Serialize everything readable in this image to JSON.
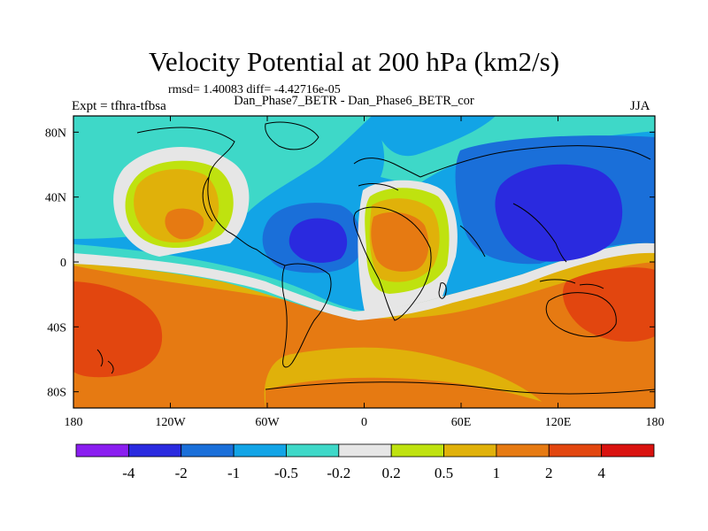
{
  "chart_data": {
    "type": "heatmap",
    "title": "Velocity Potential at 200 hPa (km2/s)",
    "stats": "rmsd= 1.40083 diff= -4.42716e-05",
    "subtitle": "Dan_Phase7_BETR - Dan_Phase6_BETR_cor",
    "left_label": "Expt = tfhra-tfbsa",
    "right_label": "JJA",
    "xlim": [
      -180,
      180
    ],
    "ylim": [
      -90,
      90
    ],
    "x_ticks": [
      {
        "value": -180,
        "label": "180"
      },
      {
        "value": -120,
        "label": "120W"
      },
      {
        "value": -60,
        "label": "60W"
      },
      {
        "value": 0,
        "label": "0"
      },
      {
        "value": 60,
        "label": "60E"
      },
      {
        "value": 120,
        "label": "120E"
      },
      {
        "value": 180,
        "label": "180"
      }
    ],
    "y_ticks": [
      {
        "value": 80,
        "label": "80N"
      },
      {
        "value": 40,
        "label": "40N"
      },
      {
        "value": 0,
        "label": "0"
      },
      {
        "value": -40,
        "label": "40S"
      },
      {
        "value": -80,
        "label": "80S"
      }
    ],
    "colorbar": {
      "colors": [
        "#8a1ef0",
        "#2a2adf",
        "#1a6fd9",
        "#12a4e6",
        "#3ed8c8",
        "#e6e6e6",
        "#bfe20f",
        "#e0b10a",
        "#e67a12",
        "#e2460f",
        "#d9120f"
      ],
      "labels": [
        "-4",
        "-2",
        "-1",
        "-0.5",
        "-0.2",
        "0.2",
        "0.5",
        "1",
        "2",
        "4"
      ]
    },
    "field_features": [
      {
        "desc": "positive max over North America",
        "lon": -127,
        "lat": 23,
        "value": 2
      },
      {
        "desc": "negative min over tropical Atlantic",
        "lon": -35,
        "lat": 15,
        "value": -2
      },
      {
        "desc": "positive max over Africa",
        "lon": 15,
        "lat": 15,
        "value": 2
      },
      {
        "desc": "negative min over Asia / West Pacific",
        "lon": 120,
        "lat": 40,
        "value": -2
      },
      {
        "desc": "strong positive over South Pacific",
        "lon": -165,
        "lat": -35,
        "value": 4
      },
      {
        "desc": "strong positive over Australia",
        "lon": 150,
        "lat": -25,
        "value": 4
      }
    ]
  }
}
